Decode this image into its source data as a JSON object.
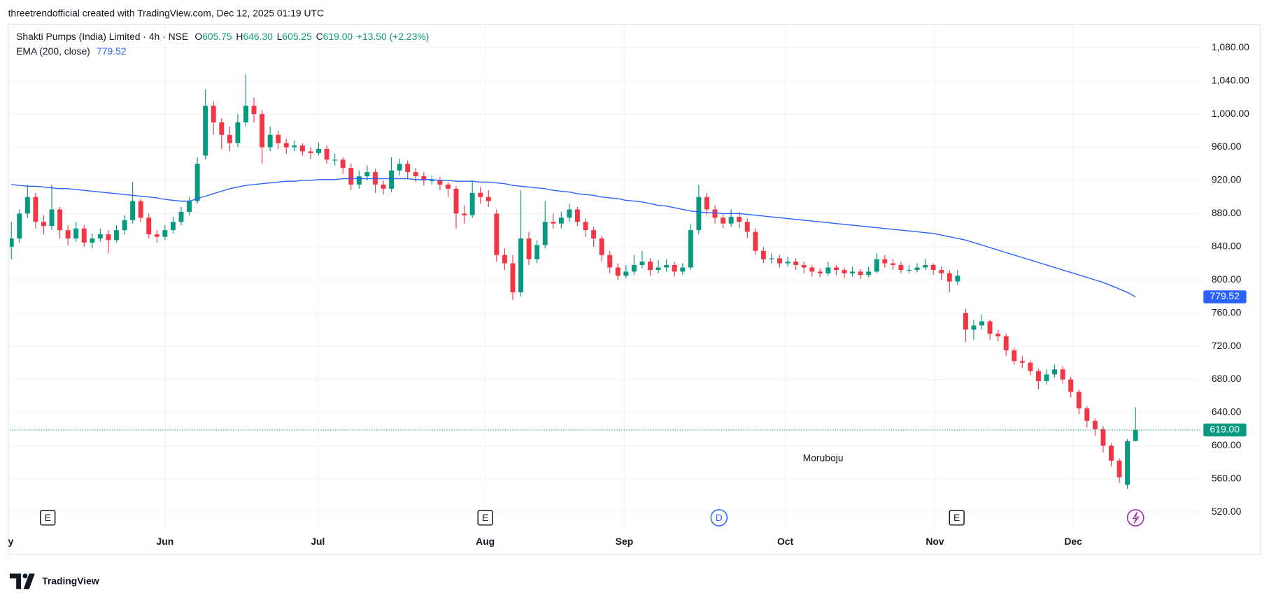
{
  "attribution": "threetrendofficial created with TradingView.com, Dec 12, 2025 01:19 UTC",
  "brand": "TradingView",
  "watermark": "Moruboju",
  "chart_data": {
    "type": "candlestick",
    "symbol": "Shakti Pumps (India) Limited · 4h · NSE",
    "last_keys": [
      "O",
      "H",
      "L",
      "C"
    ],
    "last_labels": [
      "605.75",
      "646.30",
      "605.25",
      "619.00"
    ],
    "change": "+13.50 (+2.23%)",
    "up_color": "#089981",
    "down_color": "#f23645",
    "grid": true,
    "xlim": [
      -0.2,
      147.2
    ],
    "xticks": [
      {
        "value": -0.9,
        "label": "May"
      },
      {
        "value": 19.0,
        "label": "Jun"
      },
      {
        "value": 37.9,
        "label": "Jul"
      },
      {
        "value": 58.6,
        "label": "Aug"
      },
      {
        "value": 75.8,
        "label": "Sep"
      },
      {
        "value": 95.7,
        "label": "Oct"
      },
      {
        "value": 114.2,
        "label": "Nov"
      },
      {
        "value": 131.3,
        "label": "Dec"
      }
    ],
    "ylim": [
      498.5,
      1108.3
    ],
    "yticks": [
      {
        "value": 520,
        "label": "520.00"
      },
      {
        "value": 560,
        "label": "560.00"
      },
      {
        "value": 600,
        "label": "600.00"
      },
      {
        "value": 640,
        "label": "640.00"
      },
      {
        "value": 680,
        "label": "680.00"
      },
      {
        "value": 720,
        "label": "720.00"
      },
      {
        "value": 760,
        "label": "760.00"
      },
      {
        "value": 800,
        "label": "800.00"
      },
      {
        "value": 840,
        "label": "840.00"
      },
      {
        "value": 880,
        "label": "880.00"
      },
      {
        "value": 920,
        "label": "920.00"
      },
      {
        "value": 960,
        "label": "960.00"
      },
      {
        "value": 1000,
        "label": "1,000.00"
      },
      {
        "value": 1040,
        "label": "1,040.00"
      },
      {
        "value": 1080,
        "label": "1,080.00"
      }
    ],
    "ohlc": [
      [
        840,
        870,
        825,
        850
      ],
      [
        850,
        885,
        845,
        880
      ],
      [
        880,
        915,
        875,
        900
      ],
      [
        900,
        905,
        862,
        870
      ],
      [
        870,
        878,
        855,
        865
      ],
      [
        865,
        915,
        860,
        885
      ],
      [
        885,
        888,
        850,
        860
      ],
      [
        860,
        866,
        842,
        850
      ],
      [
        850,
        870,
        846,
        862
      ],
      [
        862,
        866,
        840,
        845
      ],
      [
        845,
        856,
        838,
        850
      ],
      [
        850,
        862,
        846,
        855
      ],
      [
        855,
        860,
        832,
        848
      ],
      [
        848,
        866,
        845,
        860
      ],
      [
        860,
        878,
        855,
        872
      ],
      [
        872,
        918,
        868,
        895
      ],
      [
        895,
        898,
        870,
        875
      ],
      [
        875,
        880,
        850,
        855
      ],
      [
        855,
        860,
        845,
        852
      ],
      [
        852,
        866,
        848,
        860
      ],
      [
        860,
        876,
        856,
        870
      ],
      [
        870,
        888,
        866,
        882
      ],
      [
        882,
        900,
        878,
        895
      ],
      [
        895,
        948,
        892,
        940
      ],
      [
        950,
        1030,
        945,
        1010
      ],
      [
        1010,
        1015,
        975,
        990
      ],
      [
        990,
        995,
        958,
        975
      ],
      [
        975,
        985,
        955,
        965
      ],
      [
        965,
        1000,
        960,
        990
      ],
      [
        990,
        1048,
        985,
        1010
      ],
      [
        1010,
        1020,
        990,
        1000
      ],
      [
        1000,
        1005,
        940,
        960
      ],
      [
        960,
        985,
        955,
        975
      ],
      [
        975,
        980,
        958,
        965
      ],
      [
        965,
        970,
        952,
        960
      ],
      [
        960,
        968,
        955,
        962
      ],
      [
        962,
        965,
        950,
        955
      ],
      [
        955,
        960,
        946,
        953
      ],
      [
        953,
        966,
        950,
        958
      ],
      [
        958,
        962,
        940,
        945
      ],
      [
        945,
        952,
        938,
        945
      ],
      [
        945,
        948,
        928,
        935
      ],
      [
        935,
        940,
        908,
        915
      ],
      [
        915,
        932,
        910,
        925
      ],
      [
        925,
        938,
        920,
        930
      ],
      [
        930,
        934,
        905,
        915
      ],
      [
        915,
        920,
        903,
        910
      ],
      [
        910,
        948,
        906,
        932
      ],
      [
        932,
        946,
        926,
        940
      ],
      [
        940,
        944,
        922,
        930
      ],
      [
        930,
        935,
        918,
        925
      ],
      [
        925,
        930,
        914,
        920
      ],
      [
        920,
        926,
        915,
        920
      ],
      [
        920,
        924,
        908,
        915
      ],
      [
        915,
        918,
        900,
        910
      ],
      [
        910,
        913,
        862,
        880
      ],
      [
        880,
        890,
        868,
        878
      ],
      [
        878,
        920,
        875,
        905
      ],
      [
        905,
        912,
        892,
        900
      ],
      [
        900,
        908,
        888,
        895
      ],
      [
        880,
        885,
        822,
        830
      ],
      [
        830,
        838,
        812,
        820
      ],
      [
        820,
        830,
        776,
        785
      ],
      [
        785,
        908,
        780,
        850
      ],
      [
        850,
        858,
        818,
        825
      ],
      [
        825,
        848,
        820,
        842
      ],
      [
        842,
        895,
        838,
        870
      ],
      [
        870,
        880,
        862,
        868
      ],
      [
        868,
        882,
        862,
        875
      ],
      [
        875,
        892,
        870,
        885
      ],
      [
        885,
        888,
        865,
        870
      ],
      [
        870,
        874,
        852,
        860
      ],
      [
        860,
        864,
        840,
        850
      ],
      [
        850,
        853,
        822,
        830
      ],
      [
        830,
        835,
        808,
        815
      ],
      [
        815,
        820,
        800,
        805
      ],
      [
        805,
        818,
        802,
        810
      ],
      [
        810,
        830,
        806,
        818
      ],
      [
        818,
        835,
        814,
        822
      ],
      [
        822,
        826,
        805,
        812
      ],
      [
        812,
        824,
        808,
        815
      ],
      [
        815,
        825,
        810,
        818
      ],
      [
        818,
        822,
        804,
        810
      ],
      [
        810,
        820,
        806,
        815
      ],
      [
        815,
        868,
        812,
        860
      ],
      [
        860,
        915,
        855,
        900
      ],
      [
        900,
        905,
        878,
        885
      ],
      [
        885,
        890,
        868,
        875
      ],
      [
        875,
        880,
        862,
        868
      ],
      [
        868,
        885,
        864,
        876
      ],
      [
        876,
        882,
        862,
        870
      ],
      [
        870,
        874,
        850,
        858
      ],
      [
        858,
        862,
        830,
        835
      ],
      [
        835,
        840,
        820,
        825
      ],
      [
        825,
        832,
        820,
        826
      ],
      [
        826,
        830,
        815,
        820
      ],
      [
        820,
        828,
        816,
        822
      ],
      [
        822,
        826,
        812,
        818
      ],
      [
        818,
        822,
        808,
        815
      ],
      [
        815,
        818,
        804,
        810
      ],
      [
        810,
        814,
        803,
        808
      ],
      [
        808,
        822,
        805,
        815
      ],
      [
        815,
        818,
        806,
        812
      ],
      [
        812,
        815,
        802,
        808
      ],
      [
        808,
        816,
        804,
        810
      ],
      [
        810,
        813,
        801,
        806
      ],
      [
        806,
        816,
        803,
        810
      ],
      [
        810,
        832,
        808,
        825
      ],
      [
        825,
        830,
        815,
        820
      ],
      [
        820,
        825,
        812,
        818
      ],
      [
        818,
        822,
        808,
        812
      ],
      [
        812,
        818,
        808,
        812
      ],
      [
        812,
        820,
        809,
        815
      ],
      [
        815,
        825,
        812,
        818
      ],
      [
        818,
        820,
        806,
        812
      ],
      [
        812,
        816,
        800,
        808
      ],
      [
        808,
        812,
        785,
        798
      ],
      [
        798,
        812,
        794,
        805
      ],
      [
        760,
        765,
        725,
        740
      ],
      [
        740,
        752,
        728,
        745
      ],
      [
        745,
        758,
        740,
        750
      ],
      [
        750,
        752,
        728,
        735
      ],
      [
        735,
        740,
        726,
        732
      ],
      [
        732,
        735,
        708,
        715
      ],
      [
        715,
        718,
        698,
        702
      ],
      [
        702,
        708,
        694,
        700
      ],
      [
        700,
        703,
        685,
        690
      ],
      [
        690,
        693,
        668,
        678
      ],
      [
        678,
        692,
        674,
        686
      ],
      [
        686,
        698,
        682,
        692
      ],
      [
        692,
        696,
        675,
        680
      ],
      [
        680,
        683,
        658,
        665
      ],
      [
        665,
        668,
        638,
        645
      ],
      [
        645,
        648,
        622,
        630
      ],
      [
        630,
        633,
        612,
        620
      ],
      [
        620,
        624,
        592,
        600
      ],
      [
        600,
        603,
        575,
        582
      ],
      [
        582,
        585,
        555,
        562
      ],
      [
        553,
        608,
        548,
        605.5
      ],
      [
        605.75,
        646.3,
        605.25,
        619
      ]
    ],
    "ema": {
      "name": "EMA (200, close)",
      "color": "#2962ff",
      "values": [
        915,
        914,
        913,
        913,
        912,
        911,
        910,
        910,
        909,
        908,
        907,
        906,
        905,
        904,
        903,
        902,
        901,
        900,
        899,
        897,
        896,
        895,
        895,
        898,
        901,
        904,
        907,
        910,
        912,
        914,
        915,
        916,
        917,
        918,
        919,
        919,
        920,
        920,
        921,
        921,
        921,
        922,
        922,
        922,
        922,
        922,
        922,
        922,
        922,
        922,
        921,
        921,
        921,
        920,
        920,
        919,
        919,
        919,
        918,
        918,
        917,
        916,
        914,
        913,
        912,
        911,
        910,
        908,
        907,
        906,
        904,
        903,
        902,
        900,
        899,
        898,
        896,
        895,
        894,
        892,
        890,
        889,
        887,
        885,
        883,
        882,
        881,
        881,
        880,
        880,
        880,
        879,
        878,
        877,
        876,
        875,
        874,
        873,
        872,
        871,
        870,
        869,
        868,
        867,
        866,
        865,
        864,
        863,
        862,
        861,
        860,
        859,
        858,
        857,
        856,
        854,
        852,
        850,
        848,
        845,
        842,
        839,
        836,
        833,
        830,
        827,
        824,
        821,
        818,
        815,
        812,
        809,
        806,
        803,
        800,
        797,
        793,
        789,
        785,
        779.52
      ]
    },
    "events": {
      "x": [
        4.5,
        58.6,
        116.9,
        87.5
      ],
      "labels": [
        "E",
        "E",
        "E",
        "D"
      ]
    }
  }
}
